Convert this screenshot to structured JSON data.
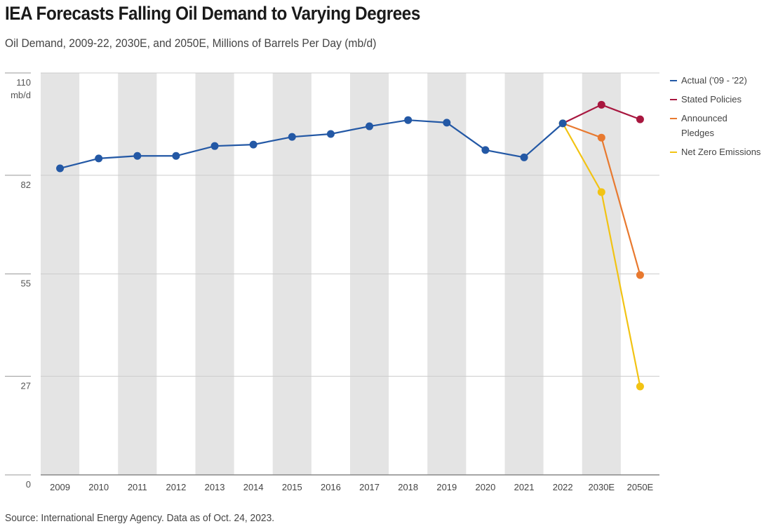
{
  "title": "IEA Forecasts Falling Oil Demand to Varying Degrees",
  "subtitle": "Oil Demand, 2009-22, 2030E, and 2050E, Millions of Barrels Per Day (mb/d)",
  "source": "Source: International Energy Agency. Data as of Oct. 24, 2023.",
  "chart_data": {
    "type": "line",
    "ylabel": "mb/d",
    "ylim": [
      0,
      110
    ],
    "yticks": [
      0,
      27,
      55,
      82,
      110
    ],
    "ytick_labels": [
      "0",
      "27",
      "55",
      "82",
      "110"
    ],
    "categories": [
      "2009",
      "2010",
      "2011",
      "2012",
      "2013",
      "2014",
      "2015",
      "2016",
      "2017",
      "2018",
      "2019",
      "2020",
      "2021",
      "2022",
      "2030E",
      "2050E"
    ],
    "legend_position": "right",
    "series": [
      {
        "name": "Actual ('09 - '22)",
        "color": "#2358a5",
        "values": [
          83.9,
          86.6,
          87.3,
          87.3,
          90.0,
          90.4,
          92.5,
          93.3,
          95.4,
          97.1,
          96.4,
          88.9,
          86.9,
          96.2,
          null,
          null
        ]
      },
      {
        "name": "Stated Policies",
        "color": "#a8173f",
        "values": [
          null,
          null,
          null,
          null,
          null,
          null,
          null,
          null,
          null,
          null,
          null,
          null,
          null,
          96.2,
          101.3,
          97.3
        ]
      },
      {
        "name": "Announced Pledges",
        "color": "#e8792f",
        "values": [
          null,
          null,
          null,
          null,
          null,
          null,
          null,
          null,
          null,
          null,
          null,
          null,
          null,
          96.2,
          92.3,
          54.7
        ]
      },
      {
        "name": "Net Zero Emissions",
        "color": "#f2c313",
        "values": [
          null,
          null,
          null,
          null,
          null,
          null,
          null,
          null,
          null,
          null,
          null,
          null,
          null,
          96.2,
          77.4,
          24.2
        ]
      }
    ]
  }
}
